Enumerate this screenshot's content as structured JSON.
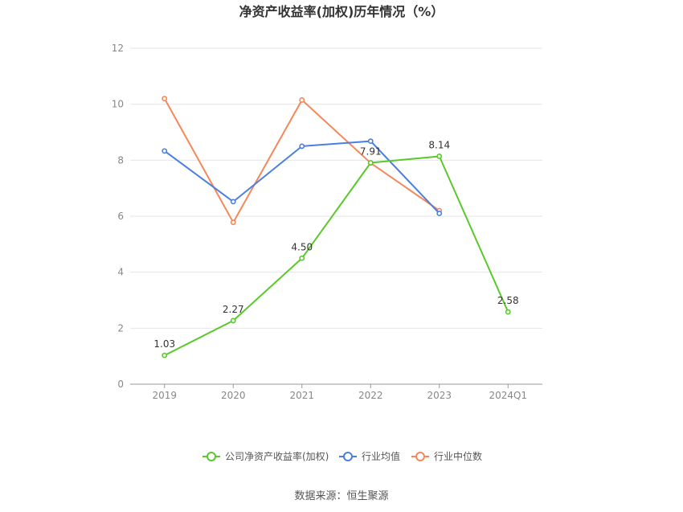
{
  "chart_data": {
    "type": "line",
    "title": "净资产收益率(加权)历年情况（%）",
    "categories": [
      "2019",
      "2020",
      "2021",
      "2022",
      "2023",
      "2024Q1"
    ],
    "ylim": [
      0,
      12
    ],
    "yticks": [
      "0",
      "2",
      "4",
      "6",
      "8",
      "10",
      "12"
    ],
    "grid": true,
    "legend_position": "bottom",
    "series": [
      {
        "name": "公司净资产收益率(加权)",
        "color": "#5ac82a",
        "values": [
          1.03,
          2.27,
          4.5,
          7.91,
          8.14,
          2.58
        ],
        "labels": [
          "1.03",
          "2.27",
          "4.50",
          "7.91",
          "8.14",
          "2.58"
        ]
      },
      {
        "name": "行业均值",
        "color": "#4a7fe0",
        "values": [
          8.33,
          6.52,
          8.5,
          8.68,
          6.1,
          null
        ]
      },
      {
        "name": "行业中位数",
        "color": "#f5875a",
        "values": [
          10.2,
          5.78,
          10.15,
          7.9,
          6.2,
          null
        ]
      }
    ],
    "source": "数据来源：恒生聚源"
  }
}
